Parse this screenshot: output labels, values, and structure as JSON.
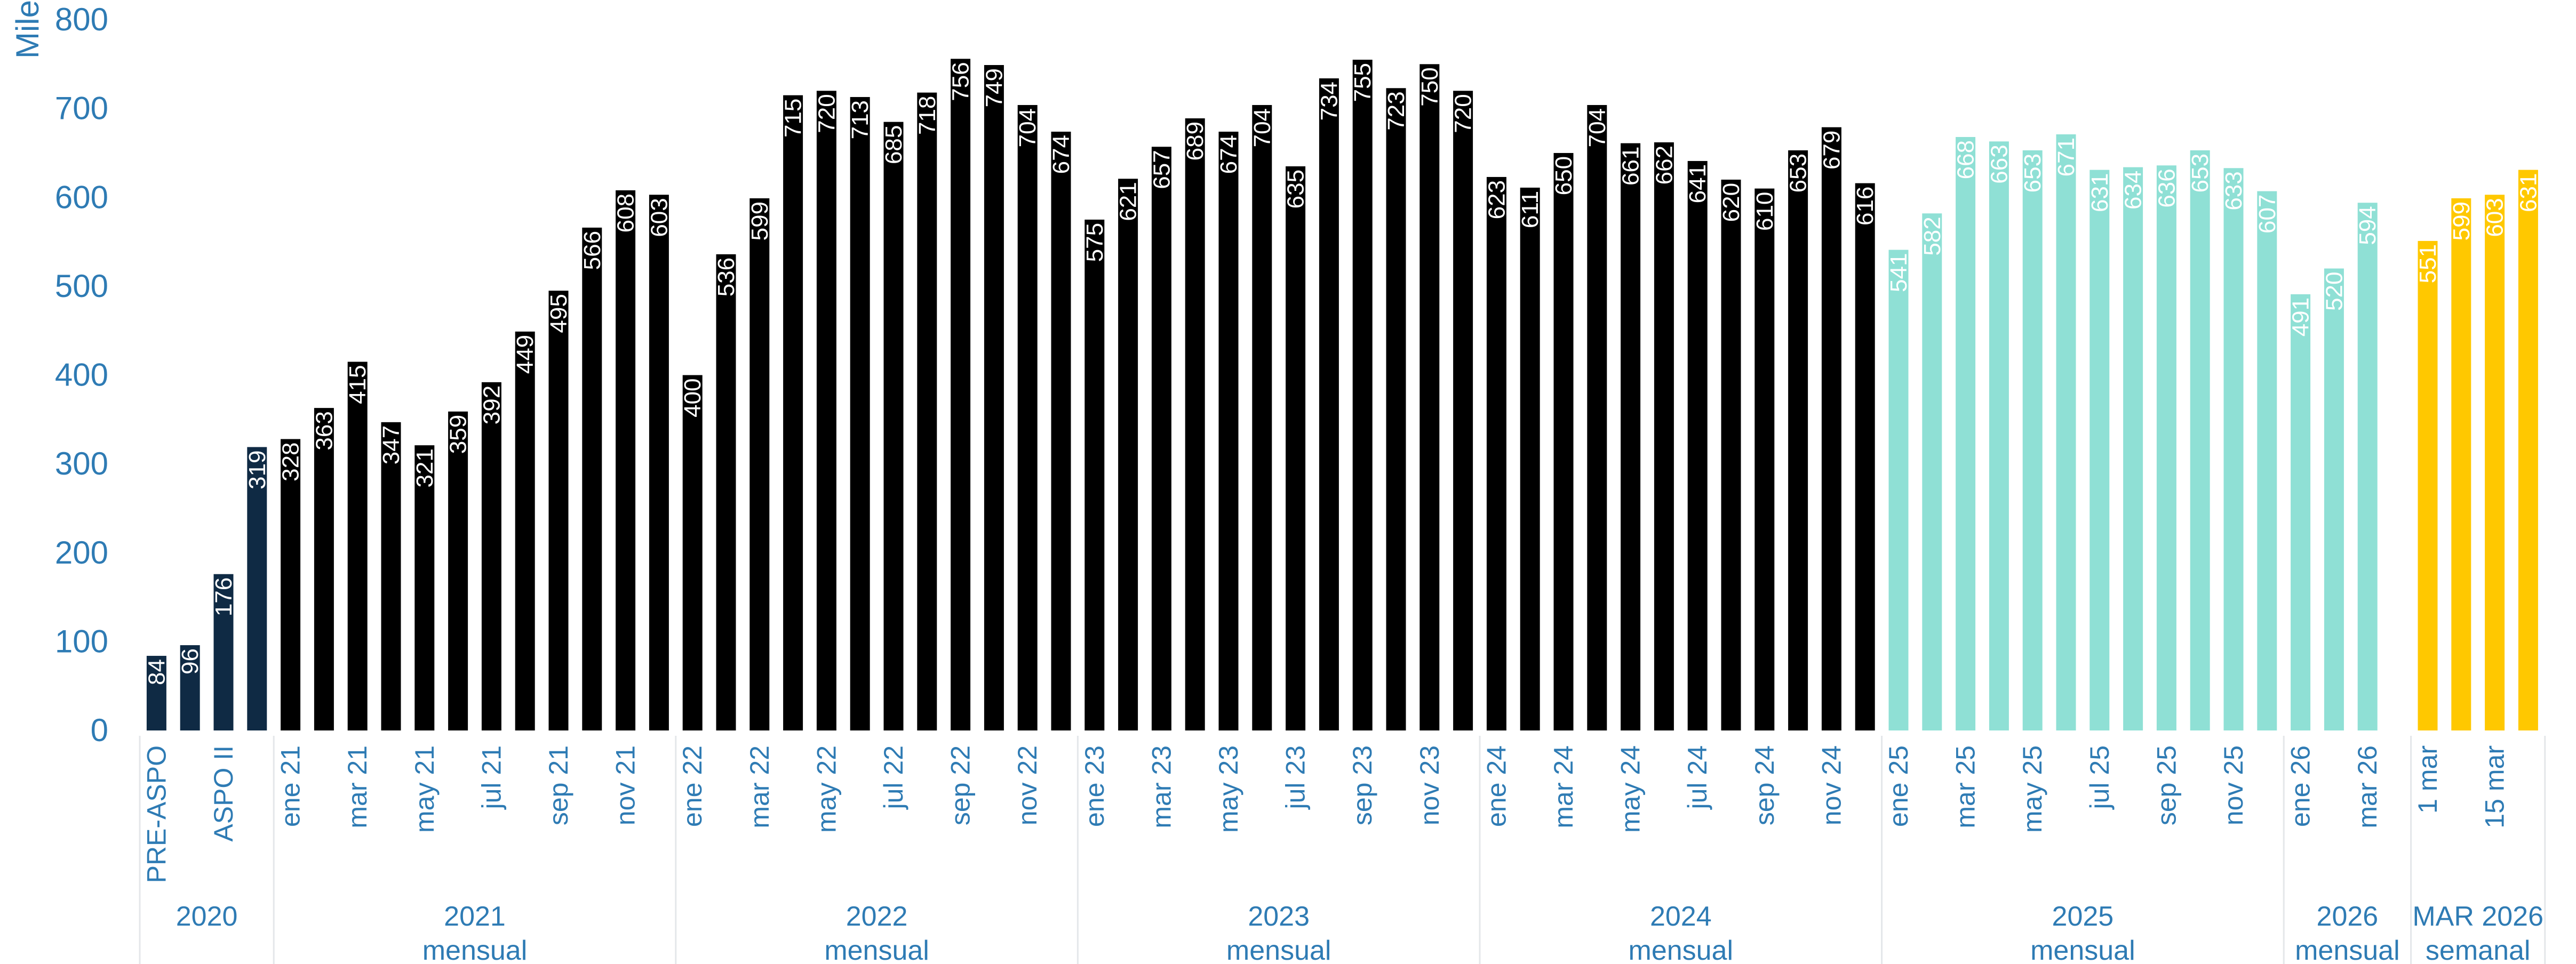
{
  "chart_data": {
    "type": "bar",
    "title": "",
    "ylabel": "Miles",
    "xlabel": "",
    "ylim": [
      0,
      800
    ],
    "yticks": [
      0,
      100,
      200,
      300,
      400,
      500,
      600,
      700,
      800
    ],
    "grid": false,
    "legend": "none",
    "colors": {
      "2020": "#0f2a44",
      "2021": "#000000",
      "2022": "#000000",
      "2023": "#000000",
      "2024": "#000000",
      "2025": "#8fe0d5",
      "2026": "#8fe0d5",
      "MAR 2026": "#ffc800",
      "axis_text": "#2e7bb4",
      "label_on_dark": "#ffffff",
      "label_on_light": "#ffffff"
    },
    "groups": [
      {
        "name": "2020",
        "sublabel": "",
        "bars": [
          {
            "label": "PRE-ASPO",
            "value": 84
          },
          {
            "label": "",
            "value": 96
          },
          {
            "label": "ASPO II",
            "value": 176
          },
          {
            "label": "",
            "value": 319
          }
        ]
      },
      {
        "name": "2021",
        "sublabel": "mensual",
        "bars": [
          {
            "label": "ene 21",
            "value": 328
          },
          {
            "label": "",
            "value": 363
          },
          {
            "label": "mar 21",
            "value": 415
          },
          {
            "label": "",
            "value": 347
          },
          {
            "label": "may 21",
            "value": 321
          },
          {
            "label": "",
            "value": 359
          },
          {
            "label": "jul 21",
            "value": 392
          },
          {
            "label": "",
            "value": 449
          },
          {
            "label": "sep 21",
            "value": 495
          },
          {
            "label": "",
            "value": 566
          },
          {
            "label": "nov 21",
            "value": 608
          },
          {
            "label": "",
            "value": 603
          }
        ]
      },
      {
        "name": "2022",
        "sublabel": "mensual",
        "bars": [
          {
            "label": "ene 22",
            "value": 400
          },
          {
            "label": "",
            "value": 536
          },
          {
            "label": "mar 22",
            "value": 599
          },
          {
            "label": "",
            "value": 715
          },
          {
            "label": "may 22",
            "value": 720
          },
          {
            "label": "",
            "value": 713
          },
          {
            "label": "jul 22",
            "value": 685
          },
          {
            "label": "",
            "value": 718
          },
          {
            "label": "sep 22",
            "value": 756
          },
          {
            "label": "",
            "value": 749
          },
          {
            "label": "nov 22",
            "value": 704
          },
          {
            "label": "",
            "value": 674
          }
        ]
      },
      {
        "name": "2023",
        "sublabel": "mensual",
        "bars": [
          {
            "label": "ene 23",
            "value": 575
          },
          {
            "label": "",
            "value": 621
          },
          {
            "label": "mar 23",
            "value": 657
          },
          {
            "label": "",
            "value": 689
          },
          {
            "label": "may 23",
            "value": 674
          },
          {
            "label": "",
            "value": 704
          },
          {
            "label": "jul 23",
            "value": 635
          },
          {
            "label": "",
            "value": 734
          },
          {
            "label": "sep 23",
            "value": 755
          },
          {
            "label": "",
            "value": 723
          },
          {
            "label": "nov 23",
            "value": 750
          },
          {
            "label": "",
            "value": 720
          }
        ]
      },
      {
        "name": "2024",
        "sublabel": "mensual",
        "bars": [
          {
            "label": "ene 24",
            "value": 623
          },
          {
            "label": "",
            "value": 611
          },
          {
            "label": "mar 24",
            "value": 650
          },
          {
            "label": "",
            "value": 704
          },
          {
            "label": "may 24",
            "value": 661
          },
          {
            "label": "",
            "value": 662
          },
          {
            "label": "jul 24",
            "value": 641
          },
          {
            "label": "",
            "value": 620
          },
          {
            "label": "sep 24",
            "value": 610
          },
          {
            "label": "",
            "value": 653
          },
          {
            "label": "nov 24",
            "value": 679
          },
          {
            "label": "",
            "value": 616
          }
        ]
      },
      {
        "name": "2025",
        "sublabel": "mensual",
        "bars": [
          {
            "label": "ene 25",
            "value": 541
          },
          {
            "label": "",
            "value": 582
          },
          {
            "label": "mar 25",
            "value": 668
          },
          {
            "label": "",
            "value": 663
          },
          {
            "label": "may 25",
            "value": 653
          },
          {
            "label": "",
            "value": 671
          },
          {
            "label": "jul 25",
            "value": 631
          },
          {
            "label": "",
            "value": 634
          },
          {
            "label": "sep 25",
            "value": 636
          },
          {
            "label": "",
            "value": 653
          },
          {
            "label": "nov 25",
            "value": 633
          },
          {
            "label": "",
            "value": 607
          }
        ]
      },
      {
        "name": "2026",
        "sublabel": "mensual",
        "bars": [
          {
            "label": "ene 26",
            "value": 491
          },
          {
            "label": "",
            "value": 520
          },
          {
            "label": "mar 26",
            "value": 594
          }
        ]
      },
      {
        "name": "MAR 2026",
        "sublabel": "semanal",
        "bars": [
          {
            "label": "1 mar",
            "value": 551
          },
          {
            "label": "",
            "value": 599
          },
          {
            "label": "15 mar",
            "value": 603
          },
          {
            "label": "",
            "value": 631
          }
        ]
      }
    ]
  }
}
